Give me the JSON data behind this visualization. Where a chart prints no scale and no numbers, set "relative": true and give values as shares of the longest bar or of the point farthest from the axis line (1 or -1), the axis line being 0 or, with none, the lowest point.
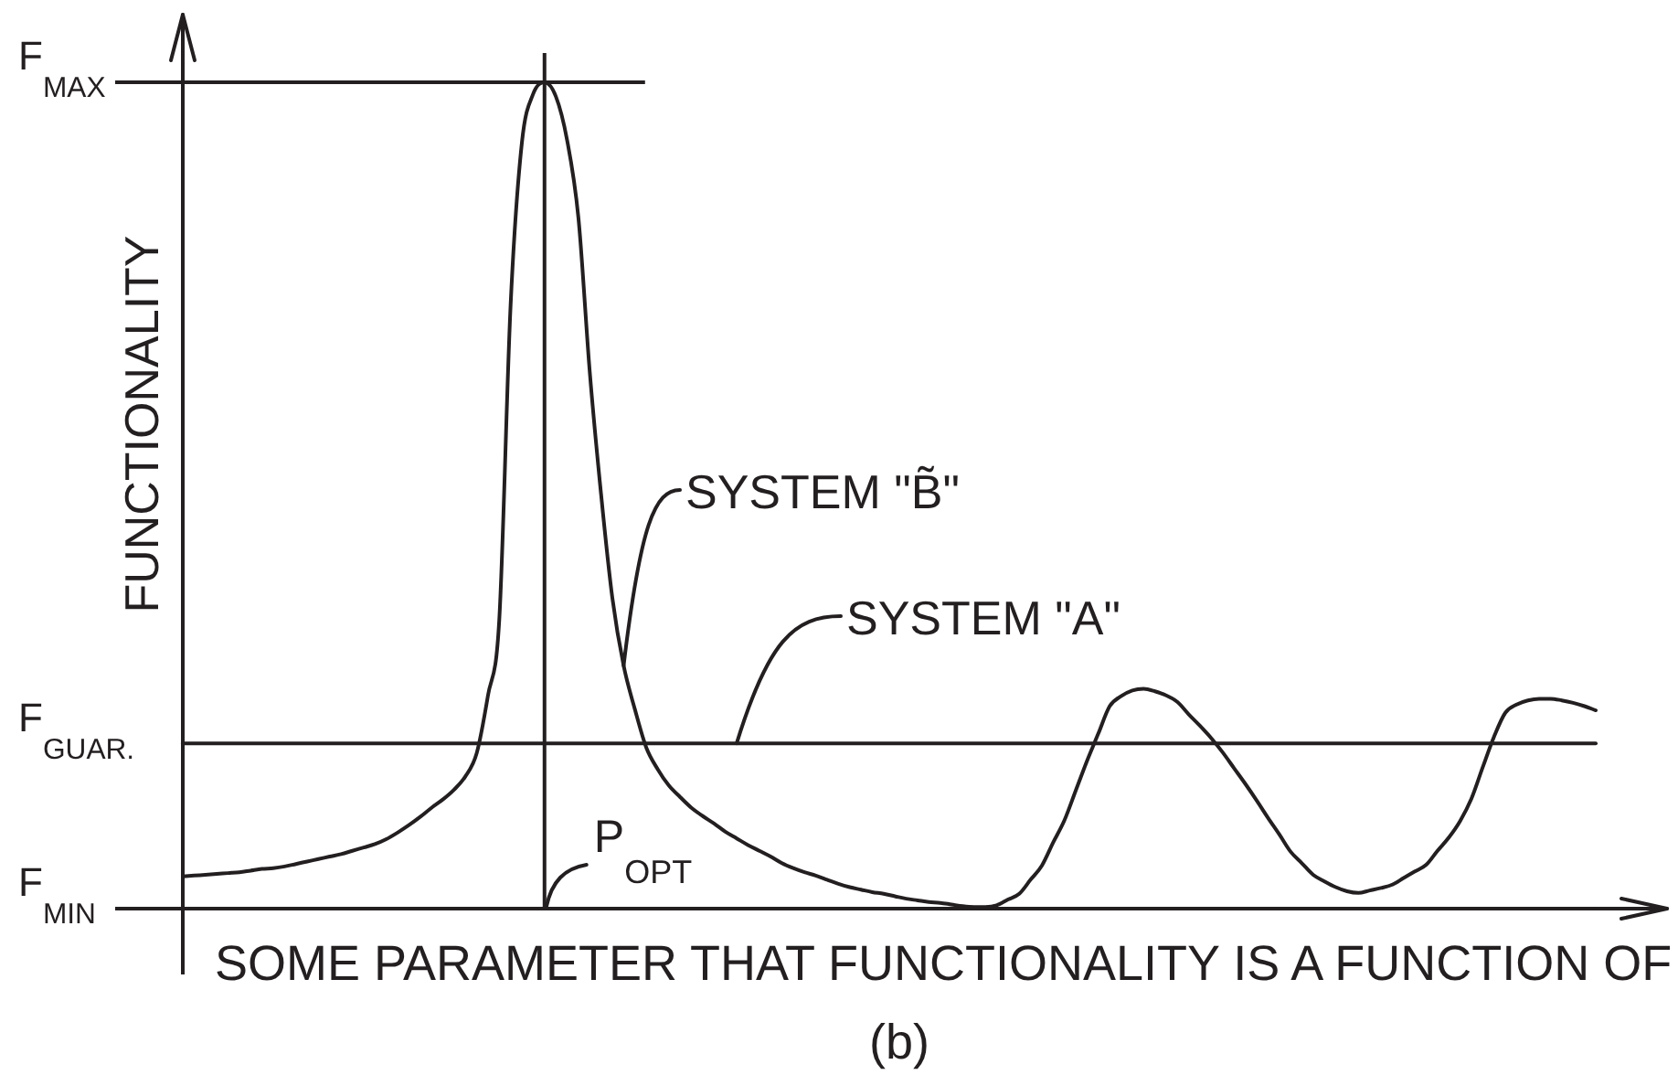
{
  "chart_data": {
    "type": "line",
    "relative": true,
    "xlabel": "SOME PARAMETER THAT FUNCTIONALITY IS A FUNCTION OF",
    "ylabel": "FUNCTIONALITY",
    "categories": [
      null,
      null,
      null,
      null,
      null,
      null,
      null,
      null,
      null,
      null,
      null,
      null,
      null,
      null,
      null,
      null,
      null,
      null,
      null,
      null,
      null,
      null,
      null,
      null,
      null,
      null,
      null,
      null,
      null,
      null,
      null,
      null,
      null,
      null,
      null,
      null,
      null,
      null,
      null,
      null,
      null,
      null,
      null,
      null,
      null,
      null,
      null,
      null,
      null,
      null,
      null,
      null,
      null,
      null,
      null,
      null,
      null,
      null,
      null,
      null,
      null,
      null,
      null,
      null,
      null,
      null,
      null,
      null,
      null,
      null,
      null,
      null,
      null,
      null,
      null,
      null,
      null,
      null,
      null,
      null,
      null,
      null,
      null,
      null,
      null,
      null,
      null,
      null,
      null,
      null,
      null,
      null,
      null,
      null,
      null,
      null,
      null,
      null,
      null,
      null,
      null,
      null,
      null,
      null,
      null,
      null,
      null,
      null,
      null,
      null,
      null,
      null,
      null,
      null,
      null,
      null,
      null,
      null,
      null,
      null,
      null,
      null,
      null,
      null,
      null,
      null
    ],
    "series": [
      {
        "name": "SYSTEM \"B̃\"",
        "color": "#231f20",
        "values": [
          0.039,
          0.04,
          0.041,
          0.042,
          0.043,
          0.044,
          0.046,
          0.048,
          0.049,
          0.051,
          0.054,
          0.057,
          0.06,
          0.063,
          0.066,
          0.07,
          0.074,
          0.078,
          0.084,
          0.092,
          0.101,
          0.111,
          0.122,
          0.132,
          0.144,
          0.16,
          0.188,
          0.258,
          0.35,
          0.73,
          0.927,
          0.986,
          1,
          0.983,
          0.93,
          0.836,
          0.65,
          0.502,
          0.376,
          0.294,
          0.241,
          0.195,
          0.169,
          0.149,
          0.135,
          0.122,
          0.112,
          0.103,
          0.093,
          0.085,
          0.077,
          0.07,
          0.063,
          0.055,
          0.049,
          0.044,
          0.04,
          0.035,
          0.03,
          0.026,
          0.023,
          0.02,
          0.018,
          0.015,
          0.012,
          0.01,
          0.008,
          0.007,
          0.005,
          0.003,
          0.002,
          0.002,
          0.004,
          0.011,
          0.018,
          0.035,
          0.052,
          0.08,
          0.107,
          0.143,
          0.179,
          0.212,
          0.245,
          0.257,
          0.264,
          0.266,
          0.263,
          0.258,
          0.25,
          0.235,
          0.221,
          0.206,
          0.189,
          0.17,
          0.151,
          0.131,
          0.11,
          0.09,
          0.069,
          0.055,
          0.041,
          0.033,
          0.026,
          0.021,
          0.019,
          0.022,
          0.025,
          0.029,
          0.037,
          0.045,
          0.053,
          0.07,
          0.086,
          0.106,
          0.133,
          0.171,
          0.208,
          0.237,
          0.247,
          0.252,
          0.254,
          0.254,
          0.252,
          0.249,
          0.245,
          0.24
        ]
      },
      {
        "name": "SYSTEM \"A\"",
        "color": "#231f20",
        "values": [
          0.2,
          0.2,
          0.2,
          0.2,
          0.2,
          0.2,
          0.2,
          0.2,
          0.2,
          0.2,
          0.2,
          0.2,
          0.2,
          0.2,
          0.2,
          0.2,
          0.2,
          0.2,
          0.2,
          0.2,
          0.2,
          0.2,
          0.2,
          0.2,
          0.2,
          0.2,
          0.2,
          0.2,
          0.2,
          0.2,
          0.2,
          0.2,
          0.2,
          0.2,
          0.2,
          0.2,
          0.2,
          0.2,
          0.2,
          0.2,
          0.2,
          0.2,
          0.2,
          0.2,
          0.2,
          0.2,
          0.2,
          0.2,
          0.2,
          0.2,
          0.2,
          0.2,
          0.2,
          0.2,
          0.2,
          0.2,
          0.2,
          0.2,
          0.2,
          0.2,
          0.2,
          0.2,
          0.2,
          0.2,
          0.2,
          0.2,
          0.2,
          0.2,
          0.2,
          0.2,
          0.2,
          0.2,
          0.2,
          0.2,
          0.2,
          0.2,
          0.2,
          0.2,
          0.2,
          0.2,
          0.2,
          0.2,
          0.2,
          0.2,
          0.2,
          0.2,
          0.2,
          0.2,
          0.2,
          0.2,
          0.2,
          0.2,
          0.2,
          0.2,
          0.2,
          0.2,
          0.2,
          0.2,
          0.2,
          0.2,
          0.2,
          0.2,
          0.2,
          0.2,
          0.2,
          0.2,
          0.2,
          0.2,
          0.2,
          0.2,
          0.2,
          0.2,
          0.2,
          0.2,
          0.2,
          0.2,
          0.2,
          0.2,
          0.2,
          0.2,
          0.2,
          0.2,
          0.2,
          0.2,
          0.2,
          0.2
        ]
      }
    ],
    "ref_lines": [
      {
        "axis": "y",
        "value": 1,
        "label": "F$_{MAX}$",
        "color": "#231f20"
      },
      {
        "axis": "y",
        "value": 0,
        "label": "F$_{MIN}$",
        "color": "#231f20"
      }
    ],
    "annotations": [
      "F$_{GUAR.}$",
      "P$_{OPT}$",
      "(b)"
    ],
    "marker": "none",
    "line_style": "solid"
  }
}
